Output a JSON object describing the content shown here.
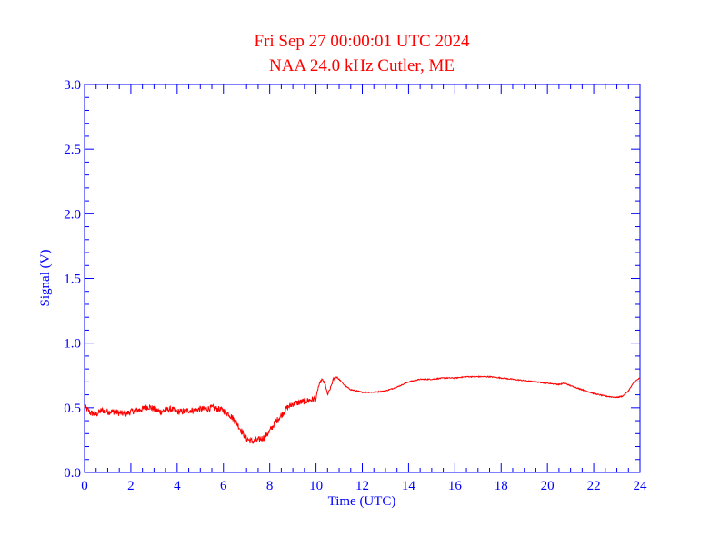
{
  "title_line1": "Fri Sep 27 00:00:01 UTC 2024",
  "title_line2": "NAA 24.0 kHz Cutler, ME",
  "colors": {
    "title": "#ff0000",
    "axes": "#0000ff",
    "series": "#ff0000",
    "background": "#ffffff"
  },
  "chart_data": {
    "type": "line",
    "title": "Fri Sep 27 00:00:01 UTC 2024",
    "subtitle": "NAA 24.0 kHz Cutler, ME",
    "xlabel": "Time (UTC)",
    "ylabel": "Signal (V)",
    "xlim": [
      0,
      24
    ],
    "ylim": [
      0,
      3.0
    ],
    "x_ticks": [
      0,
      2,
      4,
      6,
      8,
      10,
      12,
      14,
      16,
      18,
      20,
      22,
      24
    ],
    "x_tick_labels": [
      "0",
      "2",
      "4",
      "6",
      "8",
      "10",
      "12",
      "14",
      "16",
      "18",
      "20",
      "22",
      "24"
    ],
    "y_ticks": [
      0,
      0.5,
      1.0,
      1.5,
      2.0,
      2.5,
      3.0
    ],
    "y_tick_labels": [
      "0.0",
      "0.5",
      "1.0",
      "1.5",
      "2.0",
      "2.5",
      "3.0"
    ],
    "grid": false,
    "series": [
      {
        "x": [
          0,
          0.25,
          0.5,
          0.75,
          1,
          1.25,
          1.5,
          1.75,
          2,
          2.25,
          2.5,
          2.75,
          3,
          3.25,
          3.5,
          3.75,
          4,
          4.25,
          4.5,
          4.75,
          5,
          5.25,
          5.5,
          5.75,
          6,
          6.25,
          6.5,
          6.75,
          7,
          7.25,
          7.5,
          7.75,
          8,
          8.25,
          8.5,
          8.75,
          9,
          9.25,
          9.5,
          9.75,
          10,
          10.1,
          10.25,
          10.4,
          10.5,
          10.6,
          10.75,
          10.9,
          11,
          11.25,
          11.5,
          11.75,
          12,
          12.5,
          13,
          13.5,
          14,
          14.5,
          15,
          15.5,
          16,
          16.5,
          17,
          17.5,
          18,
          18.5,
          19,
          19.5,
          20,
          20.5,
          20.75,
          21,
          21.5,
          22,
          22.5,
          23,
          23.25,
          23.5,
          23.75,
          24
        ],
        "y": [
          0.51,
          0.46,
          0.45,
          0.48,
          0.47,
          0.47,
          0.46,
          0.45,
          0.47,
          0.48,
          0.49,
          0.51,
          0.49,
          0.47,
          0.48,
          0.49,
          0.47,
          0.47,
          0.48,
          0.48,
          0.49,
          0.49,
          0.5,
          0.49,
          0.48,
          0.45,
          0.4,
          0.33,
          0.26,
          0.24,
          0.25,
          0.27,
          0.32,
          0.39,
          0.44,
          0.5,
          0.53,
          0.54,
          0.55,
          0.56,
          0.57,
          0.66,
          0.72,
          0.68,
          0.6,
          0.64,
          0.72,
          0.74,
          0.72,
          0.67,
          0.64,
          0.63,
          0.62,
          0.62,
          0.63,
          0.66,
          0.7,
          0.72,
          0.72,
          0.73,
          0.73,
          0.74,
          0.74,
          0.74,
          0.73,
          0.72,
          0.71,
          0.7,
          0.69,
          0.68,
          0.69,
          0.67,
          0.64,
          0.61,
          0.59,
          0.58,
          0.59,
          0.63,
          0.7,
          0.73
        ]
      }
    ]
  }
}
